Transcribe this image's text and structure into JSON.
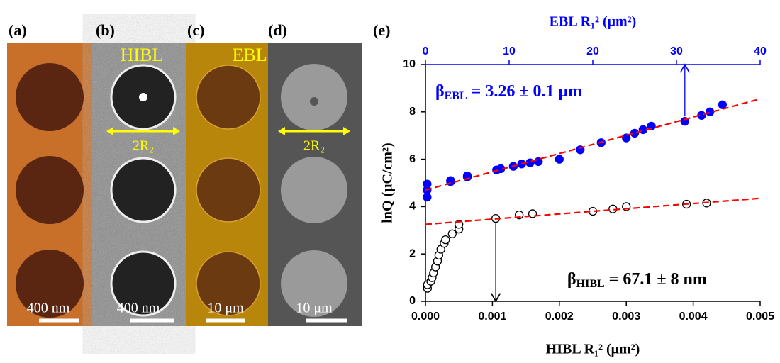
{
  "panels": {
    "labels": [
      "(a)",
      "(b)",
      "(c)",
      "(d)"
    ],
    "hibl": "HIBL",
    "ebl": "EBL",
    "width_b": "2R₂",
    "width_d": "2R₂",
    "scale_a": "400 nm",
    "scale_b": "400 nm",
    "scale_c": "10 μm",
    "scale_d": "10 μm"
  },
  "chart_data": {
    "type": "scatter",
    "title": "(e)",
    "x_label": "HIBL R₁² (μm²)",
    "x2_label": "EBL R₁² (μm²)",
    "y_label": "lnQ (μC/cm²)",
    "xlim": [
      0,
      0.005
    ],
    "xticks": [
      {
        "value": 0,
        "label": "0.000"
      },
      {
        "value": 0.001,
        "label": "0.001"
      },
      {
        "value": 0.002,
        "label": "0.002"
      },
      {
        "value": 0.003,
        "label": "0.003"
      },
      {
        "value": 0.004,
        "label": "0.004"
      },
      {
        "value": 0.005,
        "label": "0.005"
      }
    ],
    "x2lim": [
      0,
      40
    ],
    "x2ticks": [
      0,
      10,
      20,
      30,
      40
    ],
    "ylim": [
      0,
      10
    ],
    "yticks": [
      0,
      2,
      4,
      6,
      8,
      10
    ],
    "series": [
      {
        "xaxis": "x2",
        "marker": "filled",
        "color": "#0000ff",
        "x": [
          0.2,
          0.2,
          0.2,
          3,
          3,
          5,
          5,
          8.5,
          9,
          10.5,
          11.5,
          12.5,
          13.5,
          16,
          18.5,
          21,
          24,
          25,
          26,
          27,
          31,
          33,
          34,
          35.5
        ],
        "values": [
          4.95,
          4.7,
          4.4,
          5.05,
          5.1,
          5.25,
          5.3,
          5.55,
          5.6,
          5.7,
          5.8,
          5.85,
          5.9,
          6.0,
          6.4,
          6.7,
          6.9,
          7.1,
          7.25,
          7.4,
          7.6,
          7.85,
          8.0,
          8.3
        ]
      },
      {
        "xaxis": "x",
        "marker": "open",
        "color": "#000000",
        "x": [
          3e-05,
          3e-05,
          8e-05,
          0.0001,
          0.00012,
          0.00015,
          0.00018,
          0.0002,
          0.00023,
          0.00028,
          0.0003,
          0.0004,
          0.0005,
          0.0005,
          0.00105,
          0.0014,
          0.0016,
          0.0025,
          0.0028,
          0.003,
          0.0039,
          0.0042
        ],
        "values": [
          0.55,
          0.7,
          0.85,
          1.0,
          1.2,
          1.45,
          1.7,
          1.95,
          2.2,
          2.45,
          2.6,
          2.85,
          3.05,
          3.25,
          3.5,
          3.65,
          3.7,
          3.8,
          3.9,
          4.0,
          4.1,
          4.15
        ]
      },
      {
        "xaxis": "x2",
        "marker": "line",
        "color": "#ff0000",
        "x": [
          0,
          40
        ],
        "values": [
          4.7,
          8.55
        ]
      },
      {
        "xaxis": "x",
        "marker": "line",
        "color": "#ff0000",
        "x": [
          0,
          0.005
        ],
        "values": [
          3.25,
          4.35
        ]
      }
    ],
    "arrows": [
      {
        "series": 0,
        "point": 20,
        "direction": "up"
      },
      {
        "series": 1,
        "point": 14,
        "direction": "down"
      }
    ],
    "annotations": [
      {
        "symbol": "β",
        "subscript": "EBL",
        "text": " = 3.26 ± 0.1 μm",
        "color": "#0000ff"
      },
      {
        "symbol": "β",
        "subscript": "HIBL",
        "text": " = 67.1 ± 8 nm",
        "color": "#000000"
      }
    ]
  }
}
